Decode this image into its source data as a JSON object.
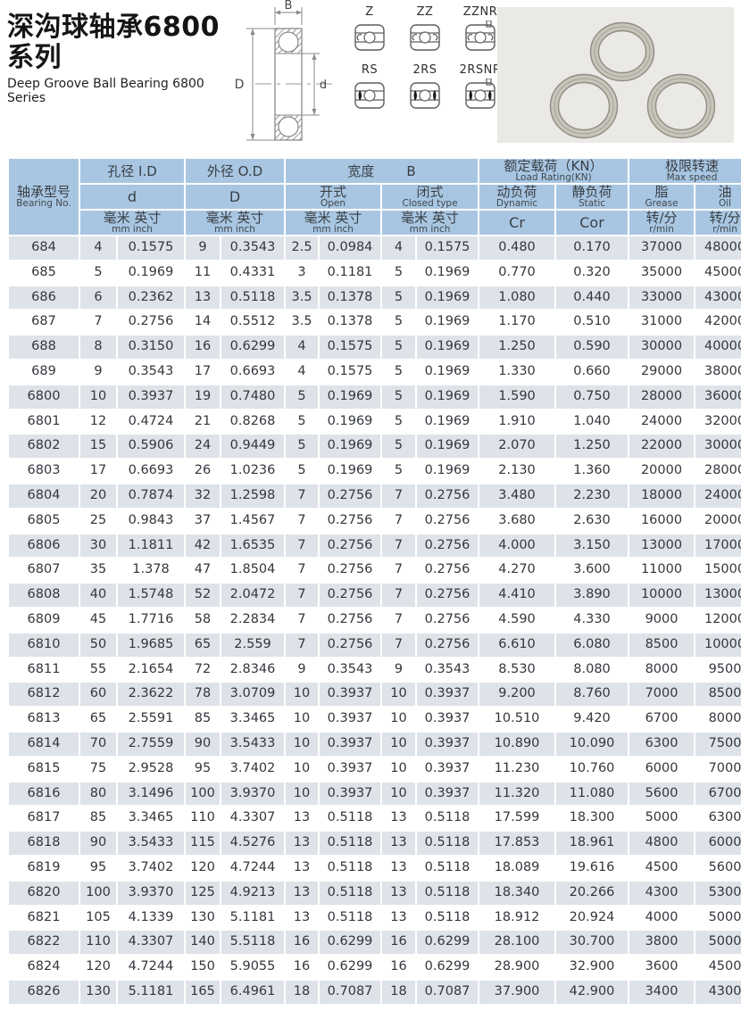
{
  "page": {
    "title_zh": "深沟球轴承6800系列",
    "title_en": "Deep Groove Ball Bearing 6800 Series"
  },
  "diagram": {
    "dim_width": "B",
    "dim_outer": "D",
    "dim_bore": "d",
    "seal_types": [
      "Z",
      "ZZ",
      "ZZNR",
      "RS",
      "2RS",
      "2RSNR"
    ]
  },
  "colors": {
    "header_bg": "#a8c6e2",
    "row_shaded": "#dee3e9",
    "row_plain": "#ffffff",
    "photo_bg": "#ebe9e6",
    "text": "#33373c"
  },
  "table": {
    "header": {
      "bearing_zh": "轴承型号",
      "bearing_en": "Bearing No.",
      "bore_zh": "孔径 I.D",
      "bore_sym": "d",
      "od_zh": "外径 O.D",
      "od_sym": "D",
      "width_zh": "宽度",
      "width_sym": "B",
      "open_zh": "开式",
      "open_en": "Open",
      "closed_zh": "闭式",
      "closed_en": "Closed type",
      "load_zh": "额定载荷（KN）",
      "load_en": "Load Rating(KN)",
      "dynamic_zh": "动负荷",
      "dynamic_en": "Dynamic",
      "dynamic_sym": "Cr",
      "static_zh": "静负荷",
      "static_en": "Static",
      "static_sym": "Cor",
      "speed_zh": "极限转速",
      "speed_en": "Max speed",
      "grease_zh": "脂",
      "grease_en": "Grease",
      "oil_zh": "油",
      "oil_en": "Oil",
      "units_zh": "毫米 英寸",
      "units_en": "mm   inch",
      "rpm_zh": "转/分",
      "rpm_en": "r/min"
    },
    "rows": [
      [
        "684",
        "4",
        "0.1575",
        "9",
        "0.3543",
        "2.5",
        "0.0984",
        "4",
        "0.1575",
        "0.480",
        "0.170",
        "37000",
        "48000"
      ],
      [
        "685",
        "5",
        "0.1969",
        "11",
        "0.4331",
        "3",
        "0.1181",
        "5",
        "0.1969",
        "0.770",
        "0.320",
        "35000",
        "45000"
      ],
      [
        "686",
        "6",
        "0.2362",
        "13",
        "0.5118",
        "3.5",
        "0.1378",
        "5",
        "0.1969",
        "1.080",
        "0.440",
        "33000",
        "43000"
      ],
      [
        "687",
        "7",
        "0.2756",
        "14",
        "0.5512",
        "3.5",
        "0.1378",
        "5",
        "0.1969",
        "1.170",
        "0.510",
        "31000",
        "42000"
      ],
      [
        "688",
        "8",
        "0.3150",
        "16",
        "0.6299",
        "4",
        "0.1575",
        "5",
        "0.1969",
        "1.250",
        "0.590",
        "30000",
        "40000"
      ],
      [
        "689",
        "9",
        "0.3543",
        "17",
        "0.6693",
        "4",
        "0.1575",
        "5",
        "0.1969",
        "1.330",
        "0.660",
        "29000",
        "38000"
      ],
      [
        "6800",
        "10",
        "0.3937",
        "19",
        "0.7480",
        "5",
        "0.1969",
        "5",
        "0.1969",
        "1.590",
        "0.750",
        "28000",
        "36000"
      ],
      [
        "6801",
        "12",
        "0.4724",
        "21",
        "0.8268",
        "5",
        "0.1969",
        "5",
        "0.1969",
        "1.910",
        "1.040",
        "24000",
        "32000"
      ],
      [
        "6802",
        "15",
        "0.5906",
        "24",
        "0.9449",
        "5",
        "0.1969",
        "5",
        "0.1969",
        "2.070",
        "1.250",
        "22000",
        "30000"
      ],
      [
        "6803",
        "17",
        "0.6693",
        "26",
        "1.0236",
        "5",
        "0.1969",
        "5",
        "0.1969",
        "2.130",
        "1.360",
        "20000",
        "28000"
      ],
      [
        "6804",
        "20",
        "0.7874",
        "32",
        "1.2598",
        "7",
        "0.2756",
        "7",
        "0.2756",
        "3.480",
        "2.230",
        "18000",
        "24000"
      ],
      [
        "6805",
        "25",
        "0.9843",
        "37",
        "1.4567",
        "7",
        "0.2756",
        "7",
        "0.2756",
        "3.680",
        "2.630",
        "16000",
        "20000"
      ],
      [
        "6806",
        "30",
        "1.1811",
        "42",
        "1.6535",
        "7",
        "0.2756",
        "7",
        "0.2756",
        "4.000",
        "3.150",
        "13000",
        "17000"
      ],
      [
        "6807",
        "35",
        "1.378",
        "47",
        "1.8504",
        "7",
        "0.2756",
        "7",
        "0.2756",
        "4.270",
        "3.600",
        "11000",
        "15000"
      ],
      [
        "6808",
        "40",
        "1.5748",
        "52",
        "2.0472",
        "7",
        "0.2756",
        "7",
        "0.2756",
        "4.410",
        "3.890",
        "10000",
        "13000"
      ],
      [
        "6809",
        "45",
        "1.7716",
        "58",
        "2.2834",
        "7",
        "0.2756",
        "7",
        "0.2756",
        "4.590",
        "4.330",
        "9000",
        "12000"
      ],
      [
        "6810",
        "50",
        "1.9685",
        "65",
        "2.559",
        "7",
        "0.2756",
        "7",
        "0.2756",
        "6.610",
        "6.080",
        "8500",
        "10000"
      ],
      [
        "6811",
        "55",
        "2.1654",
        "72",
        "2.8346",
        "9",
        "0.3543",
        "9",
        "0.3543",
        "8.530",
        "8.080",
        "8000",
        "9500"
      ],
      [
        "6812",
        "60",
        "2.3622",
        "78",
        "3.0709",
        "10",
        "0.3937",
        "10",
        "0.3937",
        "9.200",
        "8.760",
        "7000",
        "8500"
      ],
      [
        "6813",
        "65",
        "2.5591",
        "85",
        "3.3465",
        "10",
        "0.3937",
        "10",
        "0.3937",
        "10.510",
        "9.420",
        "6700",
        "8000"
      ],
      [
        "6814",
        "70",
        "2.7559",
        "90",
        "3.5433",
        "10",
        "0.3937",
        "10",
        "0.3937",
        "10.890",
        "10.090",
        "6300",
        "7500"
      ],
      [
        "6815",
        "75",
        "2.9528",
        "95",
        "3.7402",
        "10",
        "0.3937",
        "10",
        "0.3937",
        "11.230",
        "10.760",
        "6000",
        "7000"
      ],
      [
        "6816",
        "80",
        "3.1496",
        "100",
        "3.9370",
        "10",
        "0.3937",
        "10",
        "0.3937",
        "11.320",
        "11.080",
        "5600",
        "6700"
      ],
      [
        "6817",
        "85",
        "3.3465",
        "110",
        "4.3307",
        "13",
        "0.5118",
        "13",
        "0.5118",
        "17.599",
        "18.300",
        "5000",
        "6300"
      ],
      [
        "6818",
        "90",
        "3.5433",
        "115",
        "4.5276",
        "13",
        "0.5118",
        "13",
        "0.5118",
        "17.853",
        "18.961",
        "4800",
        "6000"
      ],
      [
        "6819",
        "95",
        "3.7402",
        "120",
        "4.7244",
        "13",
        "0.5118",
        "13",
        "0.5118",
        "18.089",
        "19.616",
        "4500",
        "5600"
      ],
      [
        "6820",
        "100",
        "3.9370",
        "125",
        "4.9213",
        "13",
        "0.5118",
        "13",
        "0.5118",
        "18.340",
        "20.266",
        "4300",
        "5300"
      ],
      [
        "6821",
        "105",
        "4.1339",
        "130",
        "5.1181",
        "13",
        "0.5118",
        "13",
        "0.5118",
        "18.912",
        "20.924",
        "4000",
        "5000"
      ],
      [
        "6822",
        "110",
        "4.3307",
        "140",
        "5.5118",
        "16",
        "0.6299",
        "16",
        "0.6299",
        "28.100",
        "30.700",
        "3800",
        "5000"
      ],
      [
        "6824",
        "120",
        "4.7244",
        "150",
        "5.9055",
        "16",
        "0.6299",
        "16",
        "0.6299",
        "28.900",
        "32.900",
        "3600",
        "4500"
      ],
      [
        "6826",
        "130",
        "5.1181",
        "165",
        "6.4961",
        "18",
        "0.7087",
        "18",
        "0.7087",
        "37.900",
        "42.900",
        "3400",
        "4300"
      ]
    ]
  }
}
